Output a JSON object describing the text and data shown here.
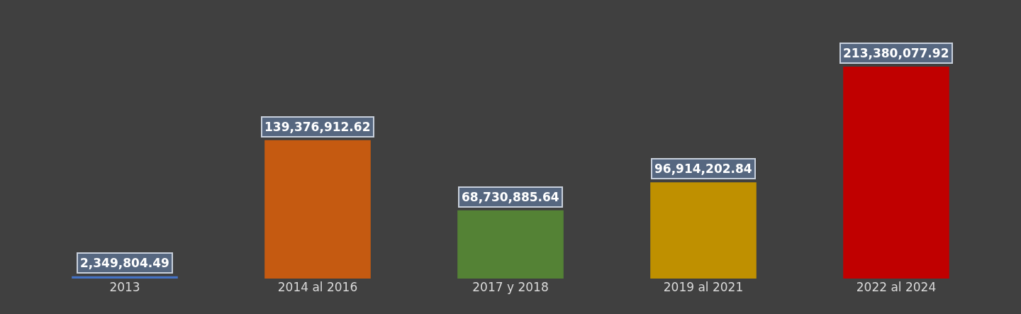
{
  "chart_data": {
    "type": "bar",
    "categories": [
      "2013",
      "2014 al 2016",
      "2017 y 2018",
      "2019 al 2021",
      "2022 al 2024"
    ],
    "values": [
      2349804.49,
      139376912.62,
      68730885.64,
      96914202.84,
      213380077.92
    ],
    "value_labels": [
      "2,349,804.49",
      "139,376,912.62",
      "68,730,885.64",
      "96,914,202.84",
      "213,380,077.92"
    ],
    "colors": [
      "#4472c4",
      "#c55a11",
      "#548235",
      "#bf9000",
      "#c00000"
    ]
  }
}
